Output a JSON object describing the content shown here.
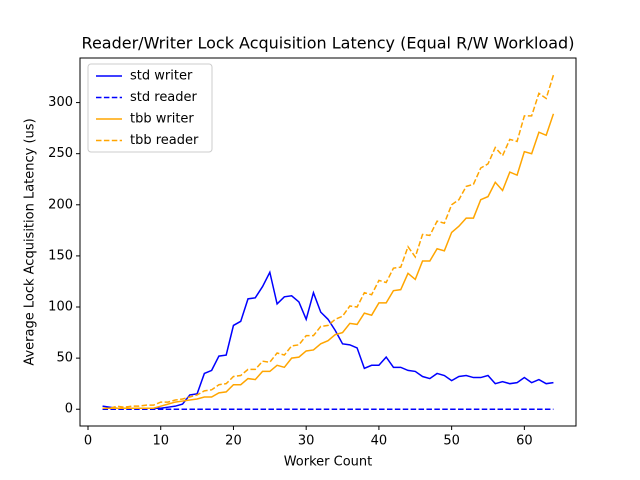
{
  "chart_data": {
    "type": "line",
    "title": "Reader/Writer Lock Acquisition Latency (Equal R/W Workload)",
    "xlabel": "Worker Count",
    "ylabel": "Average Lock Acquisition Latency (us)",
    "x": [
      2,
      3,
      4,
      5,
      6,
      7,
      8,
      9,
      10,
      11,
      12,
      13,
      14,
      15,
      16,
      17,
      18,
      19,
      20,
      21,
      22,
      23,
      24,
      25,
      26,
      27,
      28,
      29,
      30,
      31,
      32,
      33,
      34,
      35,
      36,
      37,
      38,
      39,
      40,
      41,
      42,
      43,
      44,
      45,
      46,
      47,
      48,
      49,
      50,
      51,
      52,
      53,
      54,
      55,
      56,
      57,
      58,
      59,
      60,
      61,
      62,
      63,
      64
    ],
    "series": [
      {
        "name": "std writer",
        "color": "#0000ff",
        "linestyle": "solid",
        "values": [
          3,
          2,
          1,
          1,
          1,
          1,
          1,
          1,
          1,
          2,
          3,
          5,
          14,
          15,
          35,
          38,
          52,
          53,
          82,
          86,
          108,
          109,
          120,
          134,
          103,
          110,
          111,
          105,
          88,
          114,
          95,
          88,
          77,
          64,
          63,
          60,
          40,
          43,
          43,
          51,
          41,
          41,
          38,
          37,
          32,
          30,
          35,
          33,
          28,
          32,
          33,
          31,
          31,
          33,
          25,
          27,
          25,
          26,
          31,
          26,
          29,
          25,
          26
        ]
      },
      {
        "name": "std reader",
        "color": "#0000ff",
        "linestyle": "dashed",
        "values": [
          0,
          0,
          0,
          0,
          0,
          0,
          0,
          0,
          0,
          0,
          0,
          0,
          0,
          0,
          0,
          0,
          0,
          0,
          0,
          0,
          0,
          0,
          0,
          0,
          0,
          0,
          0,
          0,
          0,
          0,
          0,
          0,
          0,
          0,
          0,
          0,
          0,
          0,
          0,
          0,
          0,
          0,
          0,
          0,
          0,
          0,
          0,
          0,
          0,
          0,
          0,
          0,
          0,
          0,
          0,
          0,
          0,
          0,
          0,
          0,
          0,
          0,
          0
        ]
      },
      {
        "name": "tbb writer",
        "color": "#ffa500",
        "linestyle": "solid",
        "values": [
          1,
          1,
          1,
          1,
          1,
          1,
          1,
          1,
          3,
          5,
          7,
          8,
          9,
          10,
          12,
          12,
          16,
          17,
          24,
          24,
          30,
          29,
          37,
          37,
          43,
          41,
          50,
          51,
          57,
          58,
          64,
          67,
          73,
          75,
          84,
          83,
          94,
          92,
          104,
          104,
          116,
          117,
          133,
          127,
          145,
          145,
          157,
          155,
          173,
          179,
          187,
          187,
          205,
          208,
          222,
          214,
          232,
          229,
          252,
          250,
          271,
          268,
          289
        ]
      },
      {
        "name": "tbb reader",
        "color": "#ffa500",
        "linestyle": "dashed",
        "values": [
          1,
          1,
          3,
          2,
          3,
          3,
          4,
          4,
          7,
          7,
          9,
          10,
          12,
          14,
          18,
          19,
          24,
          25,
          32,
          33,
          39,
          39,
          47,
          46,
          55,
          53,
          62,
          63,
          72,
          72,
          81,
          82,
          88,
          91,
          101,
          100,
          114,
          112,
          126,
          124,
          138,
          139,
          159,
          149,
          171,
          170,
          184,
          182,
          200,
          205,
          218,
          220,
          236,
          240,
          256,
          248,
          264,
          262,
          287,
          287,
          309,
          304,
          327
        ]
      }
    ],
    "xlim": [
      -1.1,
      67.1
    ],
    "xticks": [
      0,
      10,
      20,
      30,
      40,
      50,
      60
    ],
    "ylim": [
      -16.4,
      343.6
    ],
    "yticks": [
      0,
      50,
      100,
      150,
      200,
      250,
      300
    ],
    "legend": "upper left"
  }
}
